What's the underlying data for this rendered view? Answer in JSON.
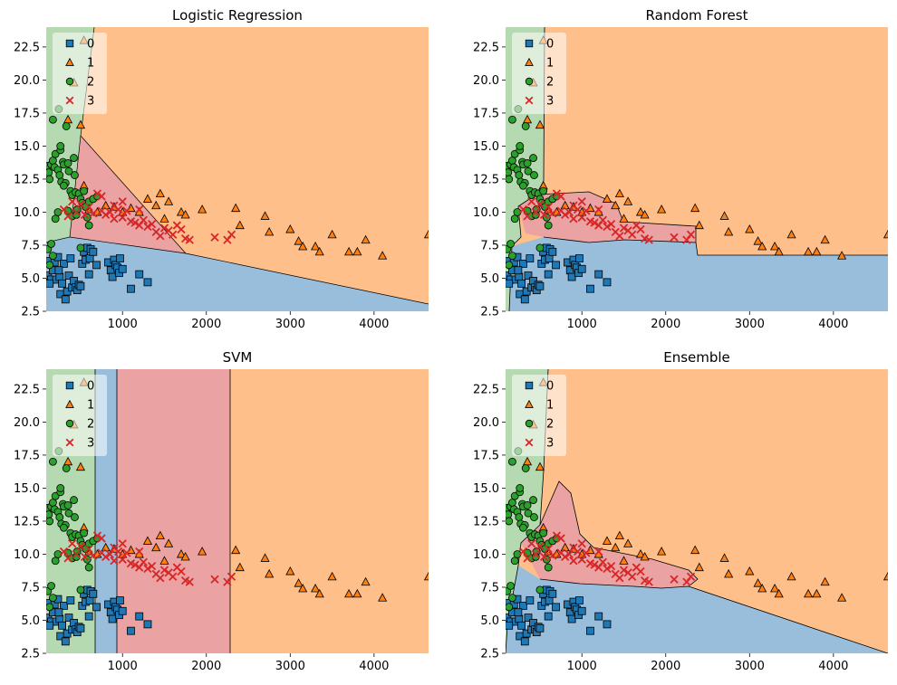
{
  "figure": {
    "subplot_titles": [
      "Logistic Regression",
      "Random Forest",
      "SVM",
      "Ensemble"
    ]
  },
  "colors": {
    "class0": "#1f77b4",
    "class1": "#ff7f0e",
    "class2": "#2ca02c",
    "class3": "#d62728"
  },
  "chart_data": [
    {
      "type": "scatter",
      "title": "Logistic Regression",
      "xlabel": "",
      "ylabel": "",
      "xlim": [
        90,
        4650
      ],
      "ylim": [
        2.5,
        24
      ],
      "xticks": [
        "1000",
        "2000",
        "3000",
        "4000"
      ],
      "yticks": [
        "2.5",
        "5.0",
        "7.5",
        "10.0",
        "12.5",
        "15.0",
        "17.5",
        "20.0",
        "22.5"
      ],
      "legend": {
        "position": "top-left",
        "entries": [
          "0",
          "1",
          "2",
          "3"
        ]
      },
      "decision_regions": "linear"
    },
    {
      "type": "scatter",
      "title": "Random Forest",
      "xlabel": "",
      "ylabel": "",
      "xlim": [
        90,
        4650
      ],
      "ylim": [
        2.5,
        24
      ],
      "xticks": [
        "1000",
        "2000",
        "3000",
        "4000"
      ],
      "yticks": [
        "2.5",
        "5.0",
        "7.5",
        "10.0",
        "12.5",
        "15.0",
        "17.5",
        "20.0",
        "22.5"
      ],
      "legend": {
        "position": "top-left",
        "entries": [
          "0",
          "1",
          "2",
          "3"
        ]
      },
      "decision_regions": "axis-aligned"
    },
    {
      "type": "scatter",
      "title": "SVM",
      "xlabel": "",
      "ylabel": "",
      "xlim": [
        90,
        4650
      ],
      "ylim": [
        2.5,
        24
      ],
      "xticks": [
        "1000",
        "2000",
        "3000",
        "4000"
      ],
      "yticks": [
        "2.5",
        "5.0",
        "7.5",
        "10.0",
        "12.5",
        "15.0",
        "17.5",
        "20.0",
        "22.5"
      ],
      "legend": {
        "position": "top-left",
        "entries": [
          "0",
          "1",
          "2",
          "3"
        ]
      },
      "decision_regions": "vertical-bands"
    },
    {
      "type": "scatter",
      "title": "Ensemble",
      "xlabel": "",
      "ylabel": "",
      "xlim": [
        90,
        4650
      ],
      "ylim": [
        2.5,
        24
      ],
      "xticks": [
        "1000",
        "2000",
        "3000",
        "4000"
      ],
      "yticks": [
        "2.5",
        "5.0",
        "7.5",
        "10.0",
        "12.5",
        "15.0",
        "17.5",
        "20.0",
        "22.5"
      ],
      "legend": {
        "position": "top-left",
        "entries": [
          "0",
          "1",
          "2",
          "3"
        ]
      },
      "decision_regions": "mixed"
    }
  ],
  "points": {
    "class0": [
      [
        110,
        5.2
      ],
      [
        130,
        6.3
      ],
      [
        150,
        4.9
      ],
      [
        170,
        5.6
      ],
      [
        190,
        6.2
      ],
      [
        210,
        4.9
      ],
      [
        230,
        6.6
      ],
      [
        250,
        5.1
      ],
      [
        260,
        3.8
      ],
      [
        280,
        4.6
      ],
      [
        300,
        6.1
      ],
      [
        320,
        3.4
      ],
      [
        340,
        4.0
      ],
      [
        360,
        5.2
      ],
      [
        380,
        6.5
      ],
      [
        400,
        4.3
      ],
      [
        420,
        4.8
      ],
      [
        440,
        4.3
      ],
      [
        460,
        4.1
      ],
      [
        480,
        4.5
      ],
      [
        500,
        4.4
      ],
      [
        520,
        6.1
      ],
      [
        540,
        7.0
      ],
      [
        560,
        6.4
      ],
      [
        580,
        7.3
      ],
      [
        600,
        5.3
      ],
      [
        610,
        6.5
      ],
      [
        620,
        7.2
      ],
      [
        650,
        7.0
      ],
      [
        830,
        6.2
      ],
      [
        860,
        5.6
      ],
      [
        880,
        5.1
      ],
      [
        900,
        6.4
      ],
      [
        920,
        6.0
      ],
      [
        940,
        5.8
      ],
      [
        960,
        5.4
      ],
      [
        970,
        6.5
      ],
      [
        1000,
        5.7
      ],
      [
        1100,
        4.2
      ],
      [
        1200,
        5.3
      ],
      [
        1300,
        4.7
      ],
      [
        130,
        4.6
      ],
      [
        240,
        5.6
      ],
      [
        690,
        6.0
      ]
    ],
    "class1": [
      [
        540,
        23.0
      ],
      [
        420,
        19.8
      ],
      [
        350,
        17.0
      ],
      [
        500,
        16.6
      ],
      [
        540,
        12.0
      ],
      [
        600,
        10.2
      ],
      [
        700,
        10.0
      ],
      [
        800,
        10.5
      ],
      [
        900,
        10.4
      ],
      [
        1000,
        10.0
      ],
      [
        1100,
        10.3
      ],
      [
        1200,
        10.0
      ],
      [
        1300,
        11.0
      ],
      [
        1400,
        10.5
      ],
      [
        1450,
        11.4
      ],
      [
        1500,
        9.5
      ],
      [
        1550,
        10.8
      ],
      [
        1700,
        10.0
      ],
      [
        1750,
        9.8
      ],
      [
        1950,
        10.2
      ],
      [
        2350,
        10.3
      ],
      [
        2400,
        9.0
      ],
      [
        2700,
        9.7
      ],
      [
        2750,
        8.5
      ],
      [
        3000,
        8.7
      ],
      [
        3100,
        7.8
      ],
      [
        3150,
        7.4
      ],
      [
        3300,
        7.4
      ],
      [
        3350,
        7.0
      ],
      [
        3500,
        8.3
      ],
      [
        3700,
        7.0
      ],
      [
        3800,
        7.0
      ],
      [
        3900,
        7.9
      ],
      [
        4100,
        6.7
      ],
      [
        4650,
        8.3
      ]
    ],
    "class2": [
      [
        110,
        13.5
      ],
      [
        120,
        13.0
      ],
      [
        130,
        12.5
      ],
      [
        150,
        13.6
      ],
      [
        170,
        13.9
      ],
      [
        190,
        13.4
      ],
      [
        200,
        14.4
      ],
      [
        230,
        13.2
      ],
      [
        250,
        12.8
      ],
      [
        260,
        14.7
      ],
      [
        270,
        12.3
      ],
      [
        290,
        13.8
      ],
      [
        300,
        13.6
      ],
      [
        320,
        12.2
      ],
      [
        330,
        16.5
      ],
      [
        350,
        13.7
      ],
      [
        360,
        13.1
      ],
      [
        380,
        11.6
      ],
      [
        400,
        11.3
      ],
      [
        420,
        14.1
      ],
      [
        430,
        12.8
      ],
      [
        440,
        11.5
      ],
      [
        460,
        10.2
      ],
      [
        480,
        11.4
      ],
      [
        500,
        11.0
      ],
      [
        520,
        10.7
      ],
      [
        540,
        11.6
      ],
      [
        560,
        10.4
      ],
      [
        580,
        9.6
      ],
      [
        600,
        9.0
      ],
      [
        110,
        7.2
      ],
      [
        130,
        6.0
      ],
      [
        150,
        7.6
      ],
      [
        170,
        6.7
      ],
      [
        200,
        9.5
      ],
      [
        230,
        10.0
      ],
      [
        260,
        15.0
      ],
      [
        170,
        17.0
      ],
      [
        240,
        17.8
      ],
      [
        300,
        12.0
      ],
      [
        350,
        10.1
      ],
      [
        400,
        9.7
      ],
      [
        450,
        9.8
      ],
      [
        600,
        10.8
      ],
      [
        650,
        11.0
      ],
      [
        700,
        11.2
      ],
      [
        500,
        7.3
      ]
    ],
    "class3": [
      [
        300,
        10.2
      ],
      [
        350,
        9.7
      ],
      [
        400,
        10.8
      ],
      [
        450,
        10.0
      ],
      [
        500,
        10.6
      ],
      [
        550,
        9.8
      ],
      [
        600,
        10.4
      ],
      [
        650,
        9.9
      ],
      [
        700,
        11.4
      ],
      [
        750,
        10.1
      ],
      [
        800,
        9.8
      ],
      [
        850,
        10.0
      ],
      [
        900,
        9.5
      ],
      [
        950,
        10.2
      ],
      [
        1000,
        9.6
      ],
      [
        1050,
        10.1
      ],
      [
        1100,
        9.3
      ],
      [
        1150,
        9.2
      ],
      [
        1200,
        9.0
      ],
      [
        1250,
        9.4
      ],
      [
        1300,
        8.9
      ],
      [
        1350,
        9.1
      ],
      [
        1400,
        8.5
      ],
      [
        1450,
        8.2
      ],
      [
        1500,
        8.8
      ],
      [
        1550,
        8.6
      ],
      [
        1600,
        8.3
      ],
      [
        1650,
        9.0
      ],
      [
        1700,
        8.7
      ],
      [
        1750,
        8.0
      ],
      [
        1800,
        7.9
      ],
      [
        2100,
        8.1
      ],
      [
        2250,
        7.9
      ],
      [
        2300,
        8.3
      ],
      [
        1000,
        10.8
      ],
      [
        900,
        10.5
      ],
      [
        1200,
        10.2
      ],
      [
        750,
        11.2
      ]
    ]
  }
}
